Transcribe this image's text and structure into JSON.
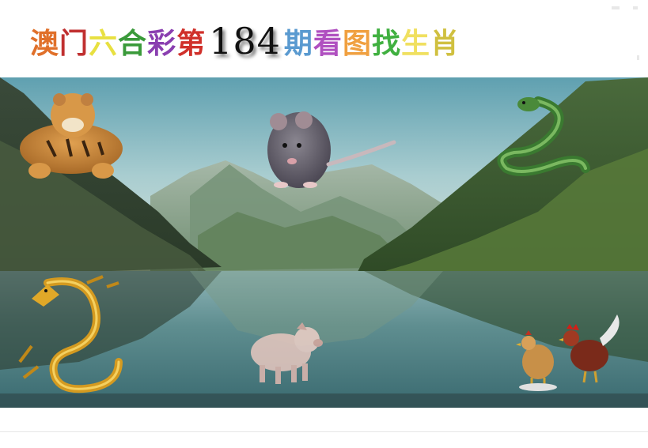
{
  "title": {
    "prefix": [
      "澳",
      "门",
      "六",
      "合",
      "彩",
      "第"
    ],
    "issue_number": "184",
    "suffix": [
      "期",
      "看",
      "图",
      "找",
      "生",
      "肖"
    ],
    "prefix_colors": [
      "#e0702a",
      "#c03030",
      "#e8e040",
      "#3a9a3a",
      "#8a3fb0",
      "#d0302a"
    ],
    "suffix_colors": [
      "#5a9ad0",
      "#b050c0",
      "#f0a040",
      "#40b040",
      "#f0e060",
      "#d0c040"
    ]
  },
  "scene": {
    "animals": [
      "tiger",
      "rat",
      "snake",
      "dragon",
      "pig",
      "rooster",
      "hen"
    ]
  }
}
